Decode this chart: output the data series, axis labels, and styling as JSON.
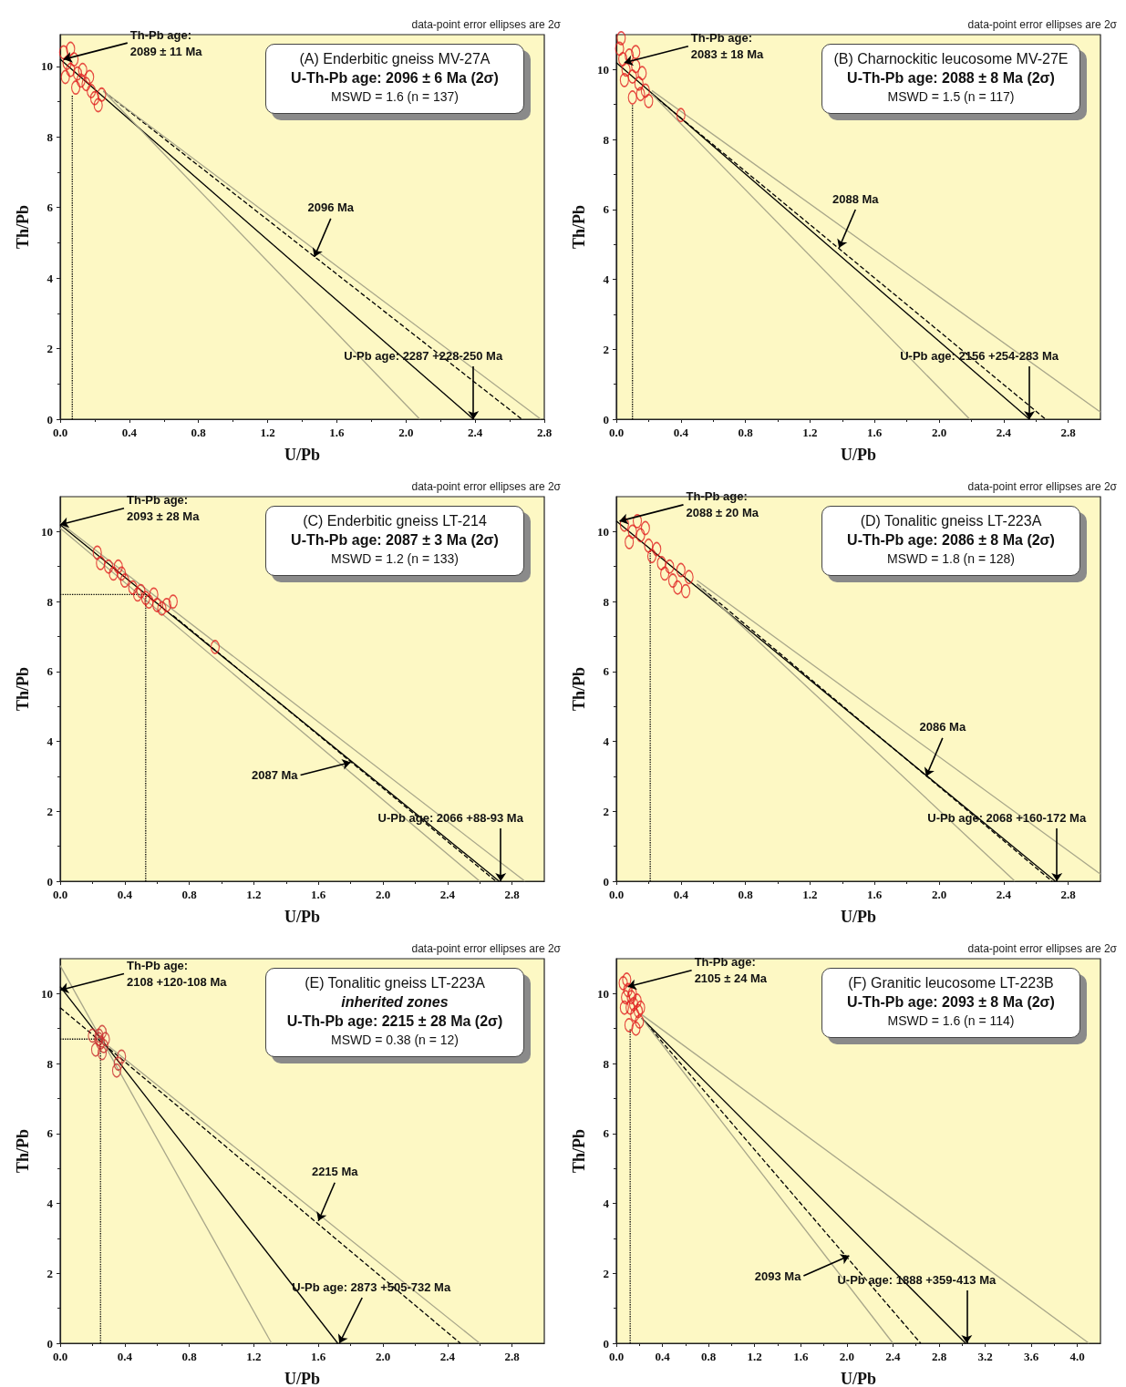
{
  "chart_data": [
    {
      "type": "scatter",
      "title": "(A) Enderbitic gneiss MV-27A",
      "subtitle": "U-Th-Pb age: 2096 ± 6 Ma (2σ)",
      "xlabel": "U/Pb",
      "ylabel": "Th/Pb",
      "xlim": [
        0,
        2.8
      ],
      "ylim": [
        0,
        10.9
      ],
      "xticks": [
        {
          "value": 0,
          "label": "0.0"
        },
        0.4,
        0.8,
        1.2,
        1.6,
        {
          "value": 2,
          "label": "2.0"
        },
        2.4,
        2.8
      ],
      "yticks": [
        0,
        2,
        4,
        6,
        8,
        10
      ],
      "annotations": [
        "data-point error ellipses are 2σ",
        "MSWD = 1.6 (n = 137)",
        {
          "text": "Th-Pb age:\n2089 ± 11 Ma",
          "x": 0.02,
          "y": 10.2
        },
        {
          "text": "2096 Ma",
          "x": 1.47,
          "y": 4.6
        },
        {
          "text": "U-Pb age: 2287 +228-250 Ma",
          "x": 2.39,
          "y": 0
        }
      ],
      "series": [
        {
          "type": "scatter",
          "marker": "circle",
          "color": "#e02020",
          "x": [
            0.02,
            0.04,
            0.06,
            0.03,
            0.08,
            0.1,
            0.12,
            0.15,
            0.18,
            0.2,
            0.22,
            0.24,
            0.13,
            0.06,
            0.17,
            0.09
          ],
          "values": [
            10.4,
            10.1,
            9.9,
            9.7,
            10.2,
            9.8,
            9.6,
            9.5,
            9.3,
            9.1,
            8.9,
            9.2,
            9.9,
            10.5,
            9.7,
            9.4
          ]
        },
        {
          "type": "line",
          "line_style": "solid",
          "color": "#000000",
          "x": [
            0,
            2.39
          ],
          "values": [
            10.2,
            0
          ]
        },
        {
          "type": "line",
          "line_style": "dashed",
          "color": "#000000",
          "x": [
            0.25,
            2.67
          ],
          "values": [
            9.3,
            0
          ]
        },
        {
          "type": "line",
          "line_style": "solid",
          "color": "#a8a68a",
          "x": [
            0.25,
            2.08
          ],
          "values": [
            9.3,
            0
          ]
        },
        {
          "type": "line",
          "line_style": "solid",
          "color": "#a8a68a",
          "x": [
            0.25,
            2.78
          ],
          "values": [
            9.3,
            0
          ]
        },
        {
          "type": "line",
          "line_style": "dotted",
          "color": "#000000",
          "x": [
            0.07,
            0.07
          ],
          "values": [
            0,
            9.2
          ]
        }
      ]
    },
    {
      "type": "scatter",
      "title": "(B) Charnockitic leucosome MV-27E",
      "subtitle": "U-Th-Pb age: 2088 ± 8 Ma (2σ)",
      "xlabel": "U/Pb",
      "ylabel": "Th/Pb",
      "xlim": [
        0,
        3.0
      ],
      "ylim": [
        0,
        11
      ],
      "xticks": [
        {
          "value": 0,
          "label": "0.0"
        },
        0.4,
        0.8,
        1.2,
        1.6,
        {
          "value": 2,
          "label": "2.0"
        },
        2.4,
        2.8
      ],
      "yticks": [
        0,
        2,
        4,
        6,
        8,
        10
      ],
      "annotations": [
        "data-point error ellipses are 2σ",
        "MSWD = 1.5 (n = 117)",
        {
          "text": "Th-Pb age:\n2083 ± 18 Ma",
          "x": 0.05,
          "y": 10.2
        },
        {
          "text": "2088 Ma",
          "x": 1.38,
          "y": 4.9
        },
        {
          "text": "U-Pb age: 2156 +254-283 Ma",
          "x": 2.56,
          "y": 0
        }
      ],
      "series": [
        {
          "type": "scatter",
          "marker": "circle",
          "color": "#e02020",
          "x": [
            0.02,
            0.04,
            0.06,
            0.08,
            0.1,
            0.12,
            0.14,
            0.16,
            0.18,
            0.05,
            0.1,
            0.15,
            0.2,
            0.03,
            0.12,
            0.4
          ],
          "values": [
            10.6,
            10.3,
            10.0,
            10.4,
            9.8,
            10.1,
            9.6,
            9.9,
            9.4,
            9.7,
            9.2,
            9.3,
            9.1,
            10.9,
            10.5,
            8.7
          ]
        },
        {
          "type": "line",
          "line_style": "solid",
          "color": "#000000",
          "x": [
            0,
            2.56
          ],
          "values": [
            10.2,
            0
          ]
        },
        {
          "type": "line",
          "line_style": "dashed",
          "color": "#000000",
          "x": [
            0.22,
            2.66
          ],
          "values": [
            9.3,
            0
          ]
        },
        {
          "type": "line",
          "line_style": "solid",
          "color": "#a8a68a",
          "x": [
            0.22,
            2.19
          ],
          "values": [
            9.3,
            0
          ]
        },
        {
          "type": "line",
          "line_style": "solid",
          "color": "#a8a68a",
          "x": [
            0.22,
            3.0
          ],
          "values": [
            9.4,
            0.2
          ]
        },
        {
          "type": "line",
          "line_style": "dotted",
          "color": "#000000",
          "x": [
            0.1,
            0.1
          ],
          "values": [
            0,
            9.0
          ]
        }
      ]
    },
    {
      "type": "scatter",
      "title": "(C) Enderbitic gneiss LT-214",
      "subtitle": "U-Th-Pb age: 2087 ± 3 Ma (2σ)",
      "xlabel": "U/Pb",
      "ylabel": "Th/Pb",
      "xlim": [
        0,
        3.0
      ],
      "ylim": [
        0,
        11
      ],
      "xticks": [
        {
          "value": 0,
          "label": "0.0"
        },
        0.4,
        0.8,
        1.2,
        1.6,
        {
          "value": 2,
          "label": "2.0"
        },
        2.4,
        2.8
      ],
      "yticks": [
        0,
        2,
        4,
        6,
        8,
        10
      ],
      "annotations": [
        "data-point error ellipses are 2σ",
        "MSWD = 1.2 (n = 133)",
        {
          "text": "Th-Pb age:\n2093 ± 28 Ma",
          "x": 0,
          "y": 10.2
        },
        {
          "text": "2087 Ma",
          "x": 1.8,
          "y": 3.4
        },
        {
          "text": "U-Pb age: 2066 +88-93 Ma",
          "x": 2.73,
          "y": 0
        }
      ],
      "series": [
        {
          "type": "scatter",
          "marker": "circle",
          "color": "#e02020",
          "x": [
            0.23,
            0.25,
            0.3,
            0.33,
            0.36,
            0.38,
            0.4,
            0.45,
            0.48,
            0.5,
            0.53,
            0.55,
            0.58,
            0.6,
            0.63,
            0.66,
            0.7,
            0.96
          ],
          "values": [
            9.4,
            9.1,
            9.0,
            8.8,
            9.0,
            8.8,
            8.6,
            8.4,
            8.2,
            8.3,
            8.1,
            8.0,
            8.2,
            7.9,
            7.8,
            7.9,
            8.0,
            6.7
          ]
        },
        {
          "type": "line",
          "line_style": "solid",
          "color": "#000000",
          "x": [
            0,
            2.72
          ],
          "values": [
            10.2,
            0
          ]
        },
        {
          "type": "line",
          "line_style": "dashed",
          "color": "#000000",
          "x": [
            0.7,
            2.7
          ],
          "values": [
            7.6,
            0
          ]
        },
        {
          "type": "line",
          "line_style": "solid",
          "color": "#a8a68a",
          "x": [
            0,
            2.88
          ],
          "values": [
            10.25,
            0
          ]
        },
        {
          "type": "line",
          "line_style": "solid",
          "color": "#a8a68a",
          "x": [
            0,
            2.6
          ],
          "values": [
            10.1,
            0
          ]
        },
        {
          "type": "line",
          "line_style": "dotted",
          "color": "#000000",
          "x": [
            0.53,
            0.53
          ],
          "values": [
            0,
            8.2
          ]
        },
        {
          "type": "line",
          "line_style": "dotted",
          "color": "#000000",
          "x": [
            0,
            0.53
          ],
          "values": [
            8.2,
            8.2
          ]
        }
      ]
    },
    {
      "type": "scatter",
      "title": "(D) Tonalitic gneiss LT-223A",
      "subtitle": "U-Th-Pb age: 2086 ± 8 Ma (2σ)",
      "xlabel": "U/Pb",
      "ylabel": "Th/Pb",
      "xlim": [
        0,
        3.0
      ],
      "ylim": [
        0,
        11
      ],
      "xticks": [
        {
          "value": 0,
          "label": "0.0"
        },
        0.4,
        0.8,
        1.2,
        1.6,
        {
          "value": 2,
          "label": "2.0"
        },
        2.4,
        2.8
      ],
      "yticks": [
        0,
        2,
        4,
        6,
        8,
        10
      ],
      "annotations": [
        "data-point error ellipses are 2σ",
        "MSWD = 1.8 (n = 128)",
        {
          "text": "Th-Pb age:\n2088 ± 20 Ma",
          "x": 0.02,
          "y": 10.3
        },
        {
          "text": "2086 Ma",
          "x": 1.92,
          "y": 3.0
        },
        {
          "text": "U-Pb age: 2068 +160-172 Ma",
          "x": 2.73,
          "y": 0
        }
      ],
      "series": [
        {
          "type": "scatter",
          "marker": "circle",
          "color": "#e02020",
          "x": [
            0.05,
            0.1,
            0.08,
            0.15,
            0.2,
            0.22,
            0.25,
            0.28,
            0.3,
            0.33,
            0.35,
            0.38,
            0.4,
            0.43,
            0.45,
            0.13,
            0.18
          ],
          "values": [
            10.2,
            10.0,
            9.7,
            9.9,
            9.6,
            9.3,
            9.5,
            9.1,
            8.8,
            9.0,
            8.6,
            8.4,
            8.9,
            8.3,
            8.7,
            10.3,
            10.1
          ]
        },
        {
          "type": "line",
          "line_style": "solid",
          "color": "#000000",
          "x": [
            0,
            2.72
          ],
          "values": [
            10.3,
            0
          ]
        },
        {
          "type": "line",
          "line_style": "dashed",
          "color": "#000000",
          "x": [
            0.5,
            2.7
          ],
          "values": [
            8.5,
            0
          ]
        },
        {
          "type": "line",
          "line_style": "solid",
          "color": "#a8a68a",
          "x": [
            0.5,
            2.47
          ],
          "values": [
            8.5,
            0
          ]
        },
        {
          "type": "line",
          "line_style": "solid",
          "color": "#a8a68a",
          "x": [
            0.5,
            3.0
          ],
          "values": [
            8.6,
            0.2
          ]
        },
        {
          "type": "line",
          "line_style": "dotted",
          "color": "#000000",
          "x": [
            0.21,
            0.21
          ],
          "values": [
            0,
            9.5
          ]
        }
      ]
    },
    {
      "type": "scatter",
      "title": "(E) Tonalitic gneiss LT-223A",
      "subtitle": "inherited zones\nU-Th-Pb age: 2215 ± 28 Ma (2σ)",
      "xlabel": "U/Pb",
      "ylabel": "Th/Pb",
      "xlim": [
        0,
        3.0
      ],
      "ylim": [
        0,
        11
      ],
      "xticks": [
        {
          "value": 0,
          "label": "0.0"
        },
        0.4,
        0.8,
        1.2,
        1.6,
        {
          "value": 2,
          "label": "2.0"
        },
        2.4,
        2.8
      ],
      "yticks": [
        0,
        2,
        4,
        6,
        8,
        10
      ],
      "annotations": [
        "data-point error ellipses are 2σ",
        "MSWD = 0.38 (n = 12)",
        {
          "text": "Th-Pb age:\n2108 +120-108 Ma",
          "x": 0,
          "y": 10.1
        },
        {
          "text": "2215 Ma",
          "x": 1.6,
          "y": 3.5
        },
        {
          "text": "U-Pb age: 2873 +505-732 Ma",
          "x": 1.73,
          "y": 0
        }
      ],
      "series": [
        {
          "type": "scatter",
          "marker": "circle",
          "color": "#c83030",
          "x": [
            0.2,
            0.24,
            0.26,
            0.27,
            0.25,
            0.22,
            0.28,
            0.36,
            0.38,
            0.35,
            0.24,
            0.26
          ],
          "values": [
            8.8,
            8.7,
            8.9,
            8.5,
            8.6,
            8.4,
            8.7,
            8.0,
            8.2,
            7.8,
            8.8,
            8.3
          ]
        },
        {
          "type": "line",
          "line_style": "solid",
          "color": "#000000",
          "x": [
            0,
            1.72
          ],
          "values": [
            10.2,
            0
          ]
        },
        {
          "type": "line",
          "line_style": "dashed",
          "color": "#000000",
          "x": [
            0,
            2.48
          ],
          "values": [
            9.6,
            0
          ]
        },
        {
          "type": "line",
          "line_style": "solid",
          "color": "#a8a68a",
          "x": [
            0,
            1.31
          ],
          "values": [
            10.8,
            0
          ]
        },
        {
          "type": "line",
          "line_style": "solid",
          "color": "#a8a68a",
          "x": [
            0.3,
            2.6
          ],
          "values": [
            8.5,
            0
          ]
        },
        {
          "type": "line",
          "line_style": "dotted",
          "color": "#000000",
          "x": [
            0.25,
            0.25
          ],
          "values": [
            0,
            8.7
          ]
        },
        {
          "type": "line",
          "line_style": "dotted",
          "color": "#000000",
          "x": [
            0,
            0.25
          ],
          "values": [
            8.7,
            8.7
          ]
        }
      ]
    },
    {
      "type": "scatter",
      "title": "(F) Granitic leucosome LT-223B",
      "subtitle": "U-Th-Pb age: 2093 ± 8 Ma (2σ)",
      "xlabel": "U/Pb",
      "ylabel": "Th/Pb",
      "xlim": [
        0,
        4.2
      ],
      "ylim": [
        0,
        11
      ],
      "xticks": [
        {
          "value": 0,
          "label": "0.0"
        },
        0.4,
        0.8,
        1.2,
        1.6,
        {
          "value": 2,
          "label": "2.0"
        },
        2.4,
        2.8,
        3.2,
        3.6,
        {
          "value": 4,
          "label": "4.0"
        }
      ],
      "yticks": [
        0,
        2,
        4,
        6,
        8,
        10
      ],
      "annotations": [
        "data-point error ellipses are 2σ",
        "MSWD = 1.6 (n = 114)",
        {
          "text": "Th-Pb age:\n2105 ± 24 Ma",
          "x": 0.1,
          "y": 10.2
        },
        {
          "text": "2093 Ma",
          "x": 2.02,
          "y": 2.5
        },
        {
          "text": "U-Pb age: 1888 +359-413 Ma",
          "x": 3.04,
          "y": 0
        }
      ],
      "series": [
        {
          "type": "scatter",
          "marker": "circle",
          "color": "#e02020",
          "x": [
            0.06,
            0.08,
            0.1,
            0.12,
            0.14,
            0.16,
            0.18,
            0.2,
            0.07,
            0.11,
            0.15,
            0.19,
            0.09,
            0.13,
            0.17,
            0.21
          ],
          "values": [
            10.3,
            9.9,
            10.1,
            9.6,
            10.0,
            9.4,
            9.8,
            9.2,
            9.6,
            9.1,
            9.7,
            9.5,
            10.4,
            9.9,
            9.0,
            9.6
          ]
        },
        {
          "type": "line",
          "line_style": "solid",
          "color": "#000000",
          "x": [
            0.22,
            3.03
          ],
          "values": [
            9.3,
            0
          ]
        },
        {
          "type": "line",
          "line_style": "dashed",
          "color": "#000000",
          "x": [
            0.22,
            2.64
          ],
          "values": [
            9.3,
            0
          ]
        },
        {
          "type": "line",
          "line_style": "solid",
          "color": "#a8a68a",
          "x": [
            0.22,
            2.4
          ],
          "values": [
            9.3,
            0
          ]
        },
        {
          "type": "line",
          "line_style": "solid",
          "color": "#a8a68a",
          "x": [
            0.22,
            4.1
          ],
          "values": [
            9.4,
            0
          ]
        },
        {
          "type": "line",
          "line_style": "dotted",
          "color": "#000000",
          "x": [
            0.12,
            0.12
          ],
          "values": [
            0,
            9.0
          ]
        }
      ]
    }
  ]
}
